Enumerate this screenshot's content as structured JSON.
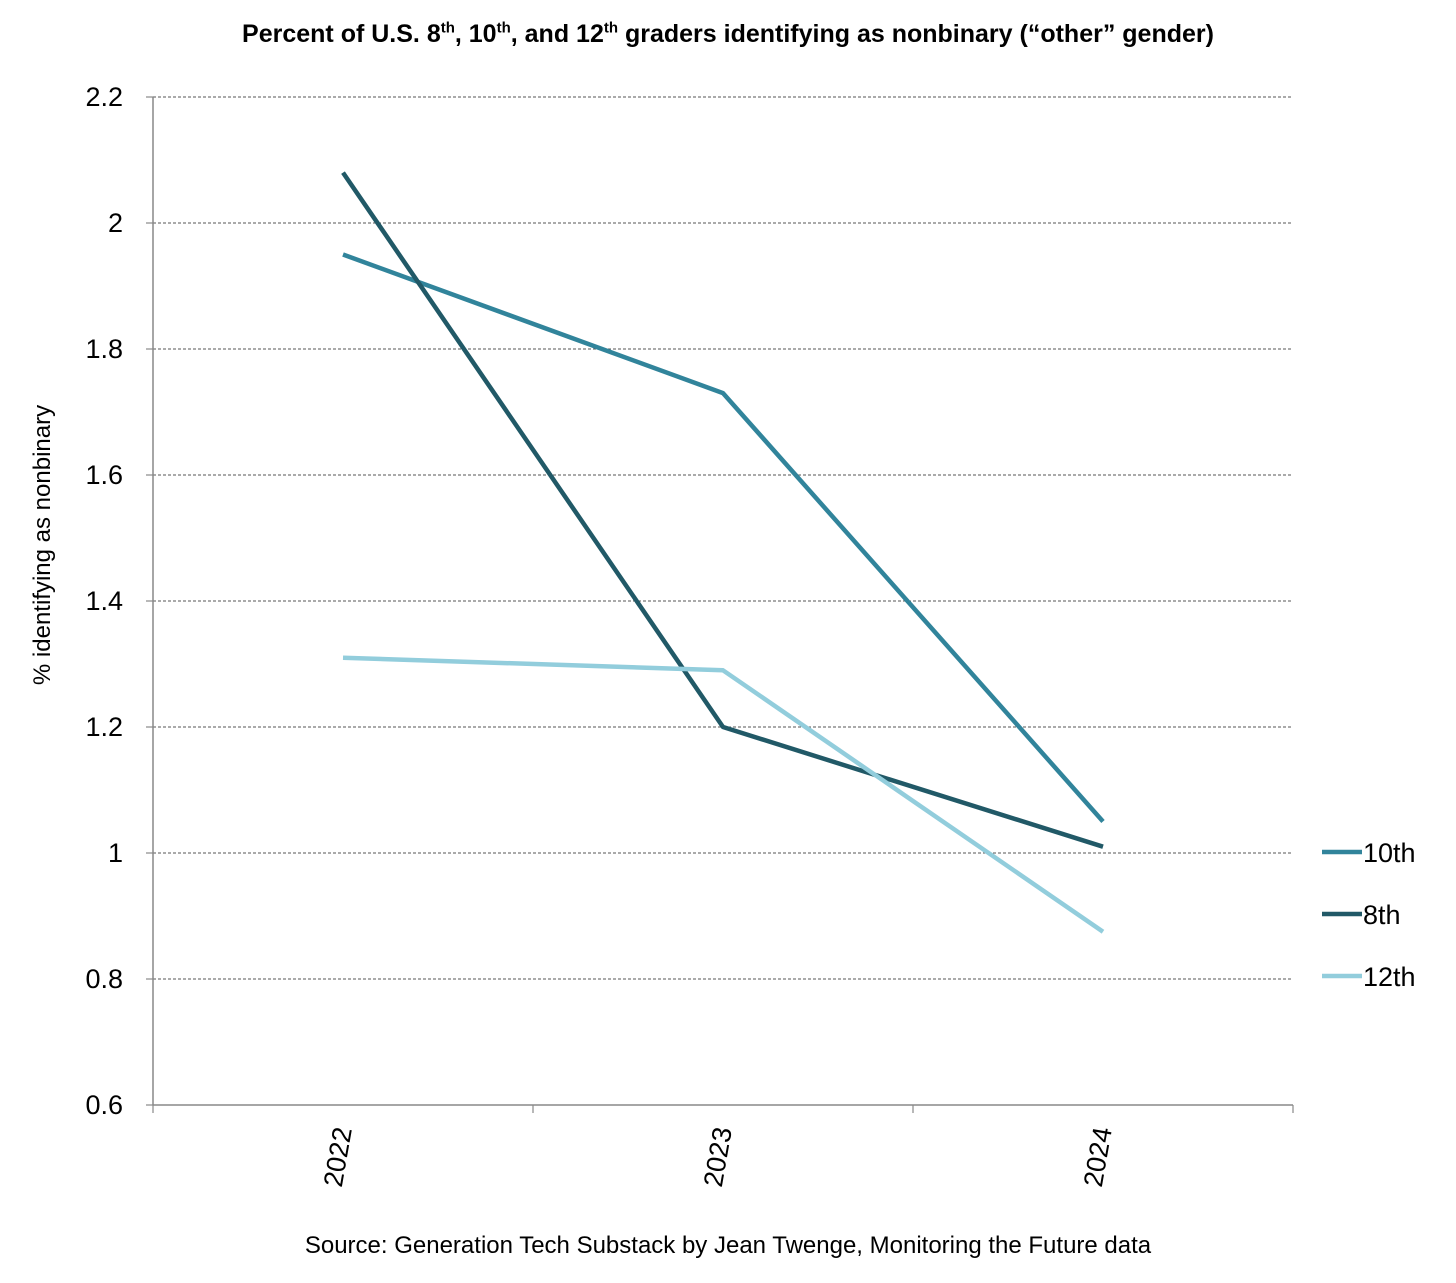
{
  "chart_data": {
    "type": "line",
    "title_parts": [
      "Percent of U.S. 8",
      "th",
      ", 10",
      "th",
      ", and 12",
      "th",
      " graders identifying as nonbinary (“other” gender)"
    ],
    "ylabel": "% identifying as nonbinary",
    "xlabel": "",
    "categories": [
      "2022",
      "2023",
      "2024"
    ],
    "ylim": [
      0.6,
      2.2
    ],
    "yticks": [
      "0.6",
      "0.8",
      "1",
      "1.2",
      "1.4",
      "1.6",
      "1.8",
      "2",
      "2.2"
    ],
    "grid": true,
    "legend_position": "right",
    "series": [
      {
        "name": "10th",
        "color": "#31849B",
        "values": [
          1.95,
          1.73,
          1.05
        ]
      },
      {
        "name": "8th",
        "color": "#215967",
        "values": [
          2.08,
          1.2,
          1.01
        ]
      },
      {
        "name": "12th",
        "color": "#92CDDC",
        "values": [
          1.31,
          1.29,
          0.875
        ]
      }
    ],
    "source": "Source: Generation Tech Substack by Jean Twenge, Monitoring the Future data"
  }
}
